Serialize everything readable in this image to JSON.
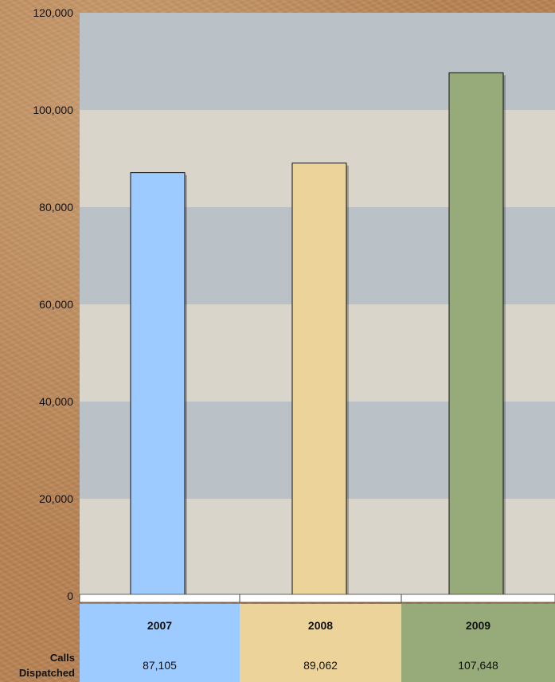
{
  "chart_data": {
    "type": "bar",
    "categories": [
      "2007",
      "2008",
      "2009"
    ],
    "values": [
      87105,
      89062,
      107648
    ],
    "display_values": [
      "87,105",
      "89,062",
      "107,648"
    ],
    "title": "",
    "xlabel": "",
    "ylabel": "",
    "ylim": [
      0,
      120000
    ],
    "yticks": [
      0,
      20000,
      40000,
      60000,
      80000,
      100000,
      120000
    ],
    "ytick_labels": [
      "0",
      "20,000",
      "40,000",
      "60,000",
      "80,000",
      "100,000",
      "120,000"
    ],
    "grid": "alternating horizontal bands",
    "legend": "none",
    "colors": [
      "#9ecbff",
      "#ecd39a",
      "#96ab79"
    ],
    "band_colors": [
      "#d9d5ca",
      "#bac1c7"
    ],
    "table": {
      "row_label_line1": "Calls",
      "row_label_line2": "Dispatched"
    }
  }
}
